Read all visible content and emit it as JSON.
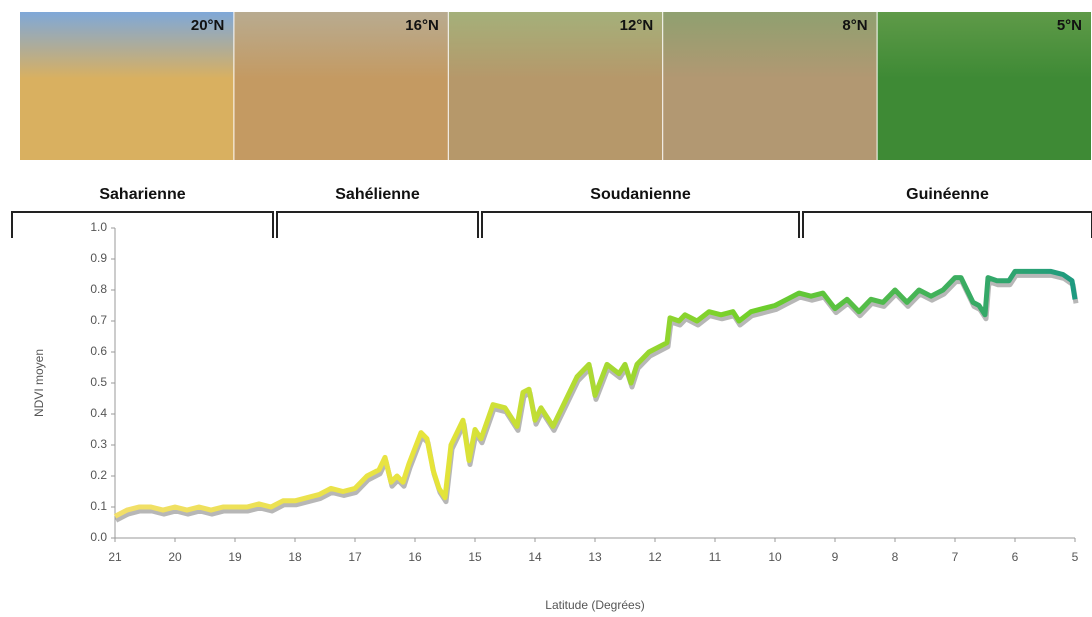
{
  "photos": [
    {
      "caption": "20°N"
    },
    {
      "caption": "16°N"
    },
    {
      "caption": "12°N"
    },
    {
      "caption": "8°N"
    },
    {
      "caption": "5°N"
    }
  ],
  "zones": [
    "Saharienne",
    "Sahélienne",
    "Soudanienne",
    "Guinéenne"
  ],
  "chart_data": {
    "type": "line",
    "x_label": "Latitude (Degrées)",
    "y_label": "NDVI moyen",
    "xlim": [
      21,
      5
    ],
    "xticks": [
      21,
      20,
      19,
      18,
      17,
      16,
      15,
      14,
      13,
      12,
      11,
      10,
      9,
      8,
      7,
      6,
      5
    ],
    "ylim": [
      0,
      1
    ],
    "yticks": [
      {
        "value": 0,
        "label": "0.0"
      },
      0.1,
      0.2,
      0.3,
      0.4,
      0.5,
      0.6,
      0.7,
      0.8,
      0.9,
      {
        "value": 1,
        "label": "1.0"
      }
    ],
    "colors": [
      "#f2df6a",
      "#e6e43a",
      "#6fcf2a",
      "#1e9a80"
    ],
    "x": [
      21,
      20.8,
      20.6,
      20.4,
      20.2,
      20,
      19.8,
      19.6,
      19.4,
      19.2,
      19,
      18.8,
      18.6,
      18.4,
      18.2,
      18,
      17.8,
      17.6,
      17.4,
      17.2,
      17,
      16.8,
      16.6,
      16.5,
      16.4,
      16.3,
      16.2,
      16.1,
      15.9,
      15.8,
      15.7,
      15.6,
      15.5,
      15.4,
      15.2,
      15.1,
      15,
      14.9,
      14.7,
      14.5,
      14.3,
      14.2,
      14.1,
      14,
      13.9,
      13.7,
      13.5,
      13.3,
      13.1,
      13,
      12.8,
      12.6,
      12.5,
      12.4,
      12.3,
      12.1,
      11.9,
      11.8,
      11.75,
      11.6,
      11.5,
      11.3,
      11.1,
      10.9,
      10.7,
      10.6,
      10.4,
      10.2,
      10,
      9.8,
      9.6,
      9.4,
      9.2,
      9,
      8.8,
      8.6,
      8.4,
      8.2,
      8,
      7.8,
      7.6,
      7.4,
      7.2,
      7,
      6.9,
      6.7,
      6.6,
      6.5,
      6.45,
      6.3,
      6.1,
      6,
      5.8,
      5.6,
      5.4,
      5.2,
      5.05,
      5
    ],
    "values": [
      0.07,
      0.09,
      0.1,
      0.1,
      0.09,
      0.1,
      0.09,
      0.1,
      0.09,
      0.1,
      0.1,
      0.1,
      0.11,
      0.1,
      0.12,
      0.12,
      0.13,
      0.14,
      0.16,
      0.15,
      0.16,
      0.2,
      0.22,
      0.26,
      0.18,
      0.2,
      0.18,
      0.24,
      0.34,
      0.32,
      0.22,
      0.16,
      0.13,
      0.3,
      0.38,
      0.25,
      0.35,
      0.32,
      0.43,
      0.42,
      0.36,
      0.47,
      0.48,
      0.38,
      0.42,
      0.36,
      0.44,
      0.52,
      0.56,
      0.46,
      0.56,
      0.53,
      0.56,
      0.5,
      0.56,
      0.6,
      0.62,
      0.63,
      0.71,
      0.7,
      0.72,
      0.7,
      0.73,
      0.72,
      0.73,
      0.7,
      0.73,
      0.74,
      0.75,
      0.77,
      0.79,
      0.78,
      0.79,
      0.74,
      0.77,
      0.73,
      0.77,
      0.76,
      0.8,
      0.76,
      0.8,
      0.78,
      0.8,
      0.84,
      0.84,
      0.76,
      0.75,
      0.72,
      0.84,
      0.83,
      0.83,
      0.86,
      0.86,
      0.86,
      0.86,
      0.85,
      0.83,
      0.77
    ]
  }
}
